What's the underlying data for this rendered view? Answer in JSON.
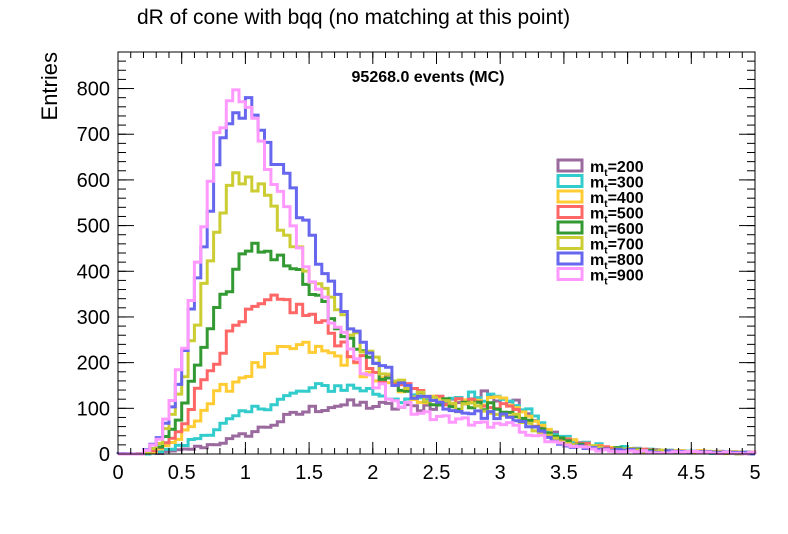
{
  "chart_data": {
    "type": "histogram",
    "title": "dR of cone with bqq (no matching at this point)",
    "xlabel": "",
    "ylabel": "Entries",
    "annotation": "95268.0 events (MC)",
    "xlim": [
      0,
      5
    ],
    "ylim": [
      0,
      880
    ],
    "bin_width": 0.05,
    "x_ticks": [
      "0",
      "0.5",
      "1",
      "1.5",
      "2",
      "2.5",
      "3",
      "3.5",
      "4",
      "4.5",
      "5"
    ],
    "y_ticks": [
      "0",
      "100",
      "200",
      "300",
      "400",
      "500",
      "600",
      "700",
      "800"
    ],
    "grid": false,
    "legend_position": "right",
    "series": [
      {
        "label_main": "m",
        "label_sub": "t",
        "label_val": "=200",
        "color": "#9a6a9e",
        "anchors": [
          [
            0.2,
            0
          ],
          [
            0.35,
            3
          ],
          [
            0.5,
            8
          ],
          [
            0.7,
            18
          ],
          [
            0.9,
            32
          ],
          [
            1.1,
            52
          ],
          [
            1.3,
            76
          ],
          [
            1.5,
            96
          ],
          [
            1.7,
            107
          ],
          [
            1.9,
            108
          ],
          [
            2.1,
            104
          ],
          [
            2.3,
            100
          ],
          [
            2.5,
            108
          ],
          [
            2.7,
            120
          ],
          [
            2.9,
            128
          ],
          [
            3.05,
            128
          ],
          [
            3.2,
            100
          ],
          [
            3.35,
            55
          ],
          [
            3.5,
            32
          ],
          [
            3.7,
            18
          ],
          [
            3.9,
            12
          ],
          [
            4.2,
            7
          ],
          [
            4.6,
            4
          ],
          [
            5,
            2
          ]
        ]
      },
      {
        "label_main": "m",
        "label_sub": "t",
        "label_val": "=300",
        "color": "#33cccc",
        "anchors": [
          [
            0.2,
            0
          ],
          [
            0.35,
            6
          ],
          [
            0.5,
            18
          ],
          [
            0.7,
            45
          ],
          [
            0.9,
            75
          ],
          [
            1.1,
            100
          ],
          [
            1.3,
            122
          ],
          [
            1.5,
            140
          ],
          [
            1.7,
            148
          ],
          [
            1.9,
            145
          ],
          [
            2.1,
            128
          ],
          [
            2.3,
            118
          ],
          [
            2.5,
            118
          ],
          [
            2.7,
            125
          ],
          [
            2.9,
            128
          ],
          [
            3.05,
            130
          ],
          [
            3.2,
            100
          ],
          [
            3.35,
            58
          ],
          [
            3.5,
            35
          ],
          [
            3.7,
            20
          ],
          [
            3.9,
            14
          ],
          [
            4.2,
            8
          ],
          [
            4.6,
            4
          ],
          [
            5,
            2
          ]
        ]
      },
      {
        "label_main": "m",
        "label_sub": "t",
        "label_val": "=400",
        "color": "#ffcc33",
        "anchors": [
          [
            0.2,
            0
          ],
          [
            0.35,
            10
          ],
          [
            0.5,
            38
          ],
          [
            0.65,
            90
          ],
          [
            0.8,
            135
          ],
          [
            1.0,
            175
          ],
          [
            1.2,
            210
          ],
          [
            1.4,
            235
          ],
          [
            1.6,
            225
          ],
          [
            1.8,
            205
          ],
          [
            2.0,
            170
          ],
          [
            2.2,
            138
          ],
          [
            2.4,
            120
          ],
          [
            2.6,
            112
          ],
          [
            2.8,
            112
          ],
          [
            3.0,
            118
          ],
          [
            3.15,
            108
          ],
          [
            3.3,
            68
          ],
          [
            3.45,
            40
          ],
          [
            3.6,
            24
          ],
          [
            3.8,
            15
          ],
          [
            4.0,
            10
          ],
          [
            4.4,
            6
          ],
          [
            5,
            2
          ]
        ]
      },
      {
        "label_main": "m",
        "label_sub": "t",
        "label_val": "=500",
        "color": "#ff6666",
        "anchors": [
          [
            0.2,
            0
          ],
          [
            0.35,
            15
          ],
          [
            0.5,
            60
          ],
          [
            0.65,
            150
          ],
          [
            0.8,
            225
          ],
          [
            0.95,
            280
          ],
          [
            1.1,
            318
          ],
          [
            1.3,
            335
          ],
          [
            1.5,
            305
          ],
          [
            1.7,
            260
          ],
          [
            1.9,
            205
          ],
          [
            2.1,
            165
          ],
          [
            2.3,
            138
          ],
          [
            2.5,
            122
          ],
          [
            2.7,
            112
          ],
          [
            2.9,
            110
          ],
          [
            3.05,
            108
          ],
          [
            3.2,
            80
          ],
          [
            3.35,
            50
          ],
          [
            3.5,
            30
          ],
          [
            3.7,
            18
          ],
          [
            3.9,
            12
          ],
          [
            4.3,
            6
          ],
          [
            5,
            2
          ]
        ]
      },
      {
        "label_main": "m",
        "label_sub": "t",
        "label_val": "=600",
        "color": "#339933",
        "anchors": [
          [
            0.2,
            0
          ],
          [
            0.35,
            20
          ],
          [
            0.5,
            95
          ],
          [
            0.65,
            215
          ],
          [
            0.8,
            335
          ],
          [
            0.95,
            415
          ],
          [
            1.1,
            450
          ],
          [
            1.25,
            440
          ],
          [
            1.4,
            400
          ],
          [
            1.6,
            325
          ],
          [
            1.8,
            250
          ],
          [
            2.0,
            190
          ],
          [
            2.2,
            148
          ],
          [
            2.4,
            122
          ],
          [
            2.6,
            112
          ],
          [
            2.8,
            105
          ],
          [
            3.0,
            100
          ],
          [
            3.15,
            85
          ],
          [
            3.3,
            55
          ],
          [
            3.45,
            32
          ],
          [
            3.6,
            20
          ],
          [
            3.8,
            12
          ],
          [
            4.2,
            6
          ],
          [
            5,
            2
          ]
        ]
      },
      {
        "label_main": "m",
        "label_sub": "t",
        "label_val": "=700",
        "color": "#cccc33",
        "anchors": [
          [
            0.2,
            0
          ],
          [
            0.35,
            30
          ],
          [
            0.5,
            140
          ],
          [
            0.65,
            330
          ],
          [
            0.8,
            520
          ],
          [
            0.9,
            590
          ],
          [
            1.0,
            605
          ],
          [
            1.15,
            580
          ],
          [
            1.3,
            500
          ],
          [
            1.5,
            400
          ],
          [
            1.7,
            320
          ],
          [
            1.9,
            245
          ],
          [
            2.1,
            178
          ],
          [
            2.3,
            135
          ],
          [
            2.5,
            112
          ],
          [
            2.7,
            102
          ],
          [
            2.9,
            98
          ],
          [
            3.05,
            90
          ],
          [
            3.2,
            68
          ],
          [
            3.35,
            42
          ],
          [
            3.5,
            25
          ],
          [
            3.7,
            15
          ],
          [
            4.0,
            8
          ],
          [
            4.5,
            4
          ],
          [
            5,
            2
          ]
        ]
      },
      {
        "label_main": "m",
        "label_sub": "t",
        "label_val": "=800",
        "color": "#6666ee",
        "anchors": [
          [
            0.2,
            0
          ],
          [
            0.35,
            40
          ],
          [
            0.5,
            180
          ],
          [
            0.65,
            420
          ],
          [
            0.8,
            650
          ],
          [
            0.92,
            745
          ],
          [
            1.0,
            760
          ],
          [
            1.1,
            725
          ],
          [
            1.25,
            640
          ],
          [
            1.4,
            545
          ],
          [
            1.6,
            420
          ],
          [
            1.8,
            300
          ],
          [
            2.0,
            215
          ],
          [
            2.2,
            155
          ],
          [
            2.4,
            118
          ],
          [
            2.6,
            100
          ],
          [
            2.8,
            88
          ],
          [
            3.0,
            82
          ],
          [
            3.15,
            70
          ],
          [
            3.3,
            48
          ],
          [
            3.45,
            28
          ],
          [
            3.6,
            16
          ],
          [
            3.8,
            10
          ],
          [
            4.2,
            5
          ],
          [
            5,
            2
          ]
        ]
      },
      {
        "label_main": "m",
        "label_sub": "t",
        "label_val": "=900",
        "color": "#ff99ff",
        "anchors": [
          [
            0.2,
            0
          ],
          [
            0.35,
            45
          ],
          [
            0.5,
            200
          ],
          [
            0.65,
            470
          ],
          [
            0.78,
            700
          ],
          [
            0.88,
            795
          ],
          [
            0.95,
            800
          ],
          [
            1.05,
            745
          ],
          [
            1.2,
            620
          ],
          [
            1.35,
            520
          ],
          [
            1.5,
            400
          ],
          [
            1.7,
            285
          ],
          [
            1.9,
            195
          ],
          [
            2.1,
            135
          ],
          [
            2.3,
            100
          ],
          [
            2.5,
            82
          ],
          [
            2.7,
            72
          ],
          [
            2.9,
            68
          ],
          [
            3.1,
            62
          ],
          [
            3.25,
            45
          ],
          [
            3.4,
            28
          ],
          [
            3.55,
            16
          ],
          [
            3.75,
            10
          ],
          [
            4.2,
            5
          ],
          [
            5,
            2
          ]
        ]
      }
    ]
  }
}
